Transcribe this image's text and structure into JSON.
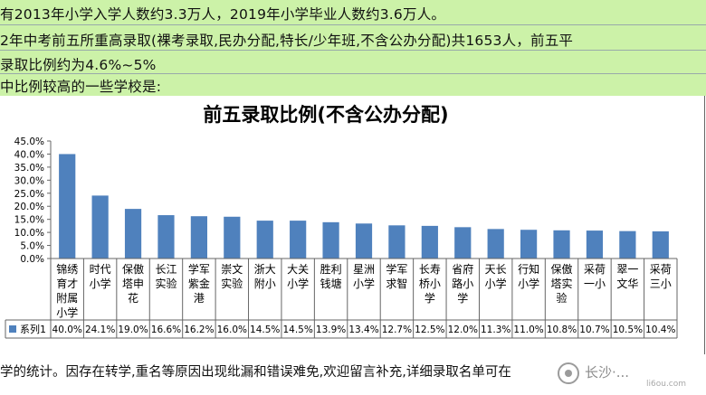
{
  "header_text": {
    "line1": "有2013年小学入学人数约3.3万人，2019年小学毕业人数约3.6万人。",
    "line2": "2年中考前五所重高录取(裸考录取,民办分配,特长/少年班,不含公办分配)共1653人，前五平",
    "line3": "录取比例约为4.6%~5%",
    "line4": "中比例较高的一些学校是:"
  },
  "footer_text": {
    "line1": "学的统计。因存在转学,重名等原因出现纰漏和错误难免,欢迎留言补充,详细录取名单可在"
  },
  "watermark": {
    "text": "长沙·...",
    "sub": "li6ou.com"
  },
  "colors": {
    "bar": "#4f81bd",
    "header_bg": "#ccf2a8"
  },
  "chart_data": {
    "type": "bar",
    "title": "前五录取比例(不含公办分配)",
    "ylim": [
      0,
      0.45
    ],
    "yticks": [
      "0.0%",
      "5.0%",
      "10.0%",
      "15.0%",
      "20.0%",
      "25.0%",
      "30.0%",
      "35.0%",
      "40.0%",
      "45.0%"
    ],
    "ytick_values": [
      0,
      0.05,
      0.1,
      0.15,
      0.2,
      0.25,
      0.3,
      0.35,
      0.4,
      0.45
    ],
    "categories": [
      [
        "锦绣",
        "育才",
        "附属",
        "小学"
      ],
      [
        "时代",
        "小学"
      ],
      [
        "保傲",
        "塔申",
        "花"
      ],
      [
        "长江",
        "实验"
      ],
      [
        "学军",
        "紫金",
        "港"
      ],
      [
        "崇文",
        "实验"
      ],
      [
        "浙大",
        "附小"
      ],
      [
        "大关",
        "小学"
      ],
      [
        "胜利",
        "钱塘"
      ],
      [
        "星洲",
        "小学"
      ],
      [
        "学军",
        "求智"
      ],
      [
        "长寿",
        "桥小",
        "学"
      ],
      [
        "省府",
        "路小",
        "学"
      ],
      [
        "天长",
        "小学"
      ],
      [
        "行知",
        "小学"
      ],
      [
        "保傲",
        "塔实",
        "验"
      ],
      [
        "采荷",
        "一小"
      ],
      [
        "翠一",
        "文华"
      ],
      [
        "采荷",
        "三小"
      ]
    ],
    "series": [
      {
        "name": "系列1",
        "values": [
          0.4,
          0.241,
          0.19,
          0.166,
          0.162,
          0.16,
          0.145,
          0.145,
          0.139,
          0.134,
          0.127,
          0.125,
          0.12,
          0.113,
          0.11,
          0.108,
          0.107,
          0.105,
          0.104
        ],
        "labels": [
          "40.0%",
          "24.1%",
          "19.0%",
          "16.6%",
          "16.2%",
          "16.0%",
          "14.5%",
          "14.5%",
          "13.9%",
          "13.4%",
          "12.7%",
          "12.5%",
          "12.0%",
          "11.3%",
          "11.0%",
          "10.8%",
          "10.7%",
          "10.5%",
          "10.4%"
        ]
      }
    ],
    "legend": "bottom-left (data table row)",
    "grid": false
  }
}
